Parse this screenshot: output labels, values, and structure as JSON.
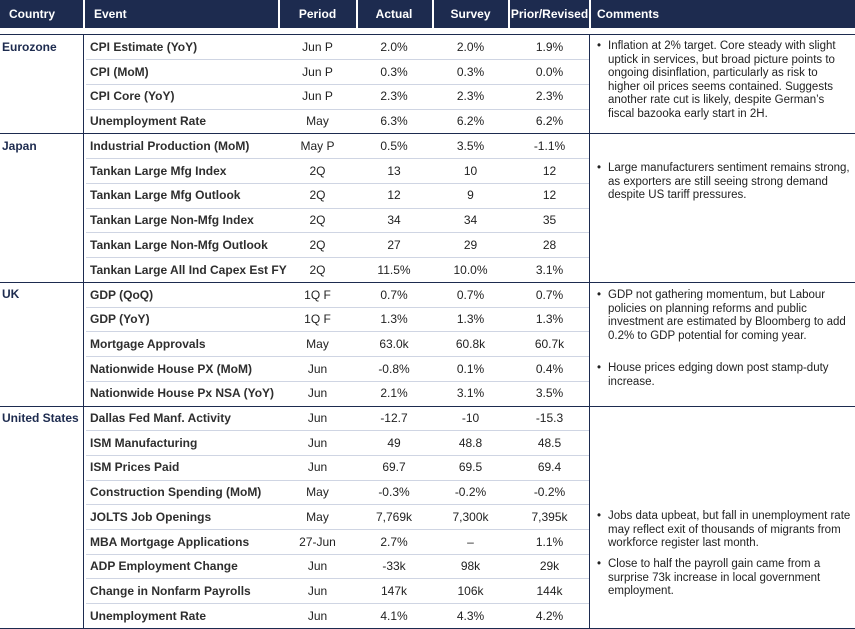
{
  "headers": {
    "country": "Country",
    "event": "Event",
    "period": "Period",
    "actual": "Actual",
    "survey": "Survey",
    "prior": "Prior/Revised",
    "comments": "Comments"
  },
  "groups": {
    "eurozone": {
      "country": "Eurozone",
      "rows": [
        {
          "event": "CPI Estimate (YoY)",
          "period": "Jun P",
          "actual": "2.0%",
          "survey": "2.0%",
          "prior": "1.9%"
        },
        {
          "event": "CPI (MoM)",
          "period": "Jun P",
          "actual": "0.3%",
          "survey": "0.3%",
          "prior": "0.0%"
        },
        {
          "event": "CPI Core (YoY)",
          "period": "Jun P",
          "actual": "2.3%",
          "survey": "2.3%",
          "prior": "2.3%"
        },
        {
          "event": "Unemployment Rate",
          "period": "May",
          "actual": "6.3%",
          "survey": "6.2%",
          "prior": "6.2%"
        }
      ],
      "comments": [
        "Inflation at 2% target. Core steady with slight uptick in services, but broad picture points to ongoing disinflation, particularly as risk to higher oil prices seems contained. Suggests another rate cut is likely, despite German’s fiscal bazooka early start in 2H."
      ]
    },
    "japan": {
      "country": "Japan",
      "rows": [
        {
          "event": "Industrial Production (MoM)",
          "period": "May P",
          "actual": "0.5%",
          "survey": "3.5%",
          "prior": "-1.1%"
        },
        {
          "event": "Tankan Large Mfg Index",
          "period": "2Q",
          "actual": "13",
          "survey": "10",
          "prior": "12"
        },
        {
          "event": "Tankan Large Mfg Outlook",
          "period": "2Q",
          "actual": "12",
          "survey": "9",
          "prior": "12"
        },
        {
          "event": "Tankan Large Non-Mfg Index",
          "period": "2Q",
          "actual": "34",
          "survey": "34",
          "prior": "35"
        },
        {
          "event": "Tankan Large Non-Mfg Outlook",
          "period": "2Q",
          "actual": "27",
          "survey": "29",
          "prior": "28"
        },
        {
          "event": "Tankan Large All Ind Capex Est FY",
          "period": "2Q",
          "actual": "11.5%",
          "survey": "10.0%",
          "prior": "3.1%"
        }
      ],
      "comments": [
        "Large manufacturers sentiment remains strong, as exporters are still seeing strong demand despite US tariff pressures."
      ]
    },
    "uk": {
      "country": "UK",
      "rows": [
        {
          "event": "GDP (QoQ)",
          "period": "1Q F",
          "actual": "0.7%",
          "survey": "0.7%",
          "prior": "0.7%"
        },
        {
          "event": "GDP (YoY)",
          "period": "1Q F",
          "actual": "1.3%",
          "survey": "1.3%",
          "prior": "1.3%"
        },
        {
          "event": "Mortgage Approvals",
          "period": "May",
          "actual": "63.0k",
          "survey": "60.8k",
          "prior": "60.7k"
        },
        {
          "event": "Nationwide House PX (MoM)",
          "period": "Jun",
          "actual": "-0.8%",
          "survey": "0.1%",
          "prior": "0.4%"
        },
        {
          "event": "Nationwide House Px NSA (YoY)",
          "period": "Jun",
          "actual": "2.1%",
          "survey": "3.1%",
          "prior": "3.5%"
        }
      ],
      "comments": [
        "GDP not gathering momentum, but Labour policies on planning reforms and public investment are estimated by Bloomberg to add 0.2% to GDP potential for coming year.",
        "House prices edging down post stamp-duty increase."
      ]
    },
    "us": {
      "country": "United States",
      "rows": [
        {
          "event": "Dallas Fed Manf. Activity",
          "period": "Jun",
          "actual": "-12.7",
          "survey": "-10",
          "prior": "-15.3"
        },
        {
          "event": "ISM Manufacturing",
          "period": "Jun",
          "actual": "49",
          "survey": "48.8",
          "prior": "48.5"
        },
        {
          "event": "ISM Prices Paid",
          "period": "Jun",
          "actual": "69.7",
          "survey": "69.5",
          "prior": "69.4"
        },
        {
          "event": "Construction Spending (MoM)",
          "period": "May",
          "actual": "-0.3%",
          "survey": "-0.2%",
          "prior": "-0.2%"
        },
        {
          "event": "JOLTS Job Openings",
          "period": "May",
          "actual": "7,769k",
          "survey": "7,300k",
          "prior": "7,395k"
        },
        {
          "event": "MBA Mortgage Applications",
          "period": "27-Jun",
          "actual": "2.7%",
          "survey": "–",
          "prior": "1.1%"
        },
        {
          "event": "ADP Employment Change",
          "period": "Jun",
          "actual": "-33k",
          "survey": "98k",
          "prior": "29k"
        },
        {
          "event": "Change in Nonfarm Payrolls",
          "period": "Jun",
          "actual": "147k",
          "survey": "106k",
          "prior": "144k"
        },
        {
          "event": "Unemployment Rate",
          "period": "Jun",
          "actual": "4.1%",
          "survey": "4.3%",
          "prior": "4.2%"
        }
      ],
      "comments": [
        "Jobs data upbeat, but fall in unemployment rate may reflect exit of thousands of migrants from workforce register last month.",
        "Close to half the payroll gain came from a surprise 73k increase in local government employment."
      ]
    }
  }
}
